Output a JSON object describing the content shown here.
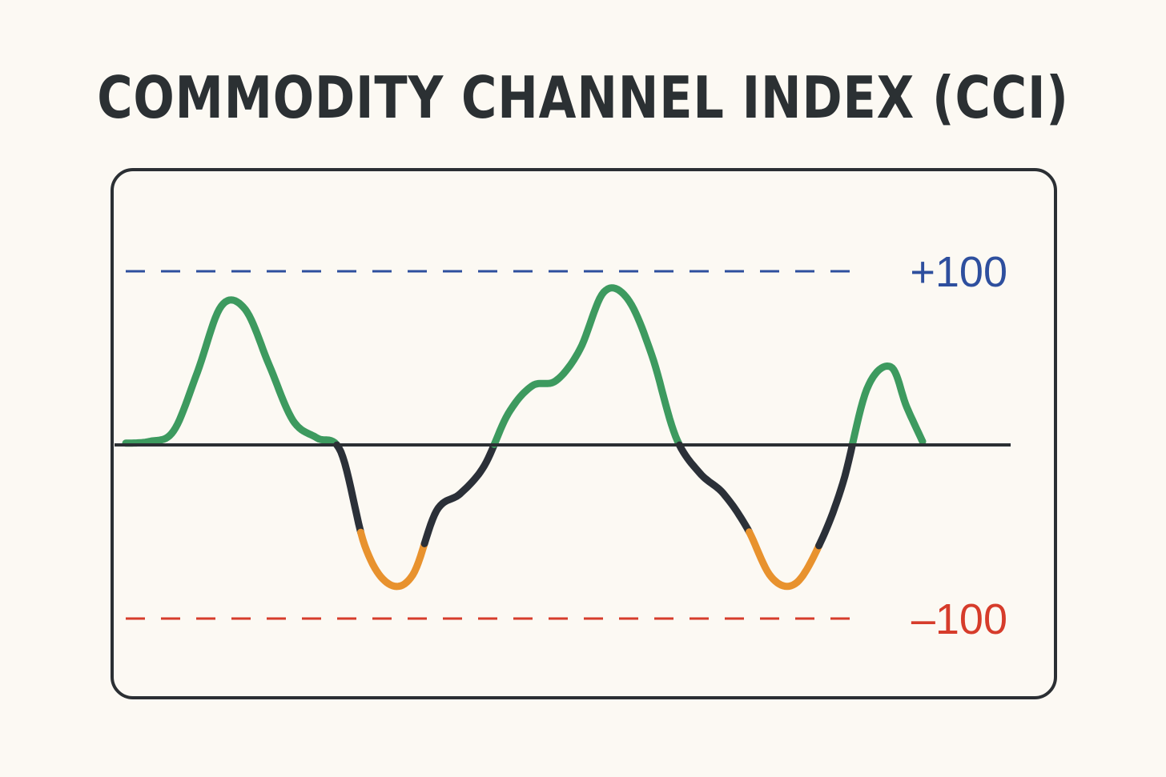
{
  "chart_data": {
    "type": "line",
    "title": "COMMODITY CHANNEL INDEX (CCI)",
    "xlabel": "",
    "ylabel": "",
    "ylim": [
      -150,
      150
    ],
    "grid": false,
    "legend": "none",
    "reference_lines": [
      {
        "value": 100,
        "label": "+100",
        "color": "#2e4f9e",
        "style": "dashed"
      },
      {
        "value": 0,
        "label": "",
        "color": "#2b2f33",
        "style": "solid"
      },
      {
        "value": -100,
        "label": "–100",
        "color": "#d63c2b",
        "style": "dashed"
      }
    ],
    "series": [
      {
        "colors": {
          "above_zero": "#3d9a5f",
          "declining_below_zero": "#2b3038",
          "oversold_zone": "#e8922e"
        },
        "x": [
          0,
          6,
          12,
          18,
          24,
          30,
          36,
          42,
          48,
          54,
          60,
          66,
          72,
          78,
          84,
          90,
          96,
          102,
          108,
          114,
          120,
          126,
          132,
          138,
          144,
          150,
          156,
          162,
          168,
          174,
          180,
          186,
          192,
          196,
          200
        ],
        "y": [
          1,
          2,
          8,
          42,
          80,
          78,
          46,
          14,
          4,
          -4,
          -58,
          -80,
          -75,
          -38,
          -28,
          -12,
          18,
          34,
          37,
          55,
          88,
          84,
          52,
          5,
          -16,
          -28,
          -48,
          -76,
          -80,
          -58,
          -22,
          32,
          45,
          22,
          2
        ]
      }
    ]
  }
}
